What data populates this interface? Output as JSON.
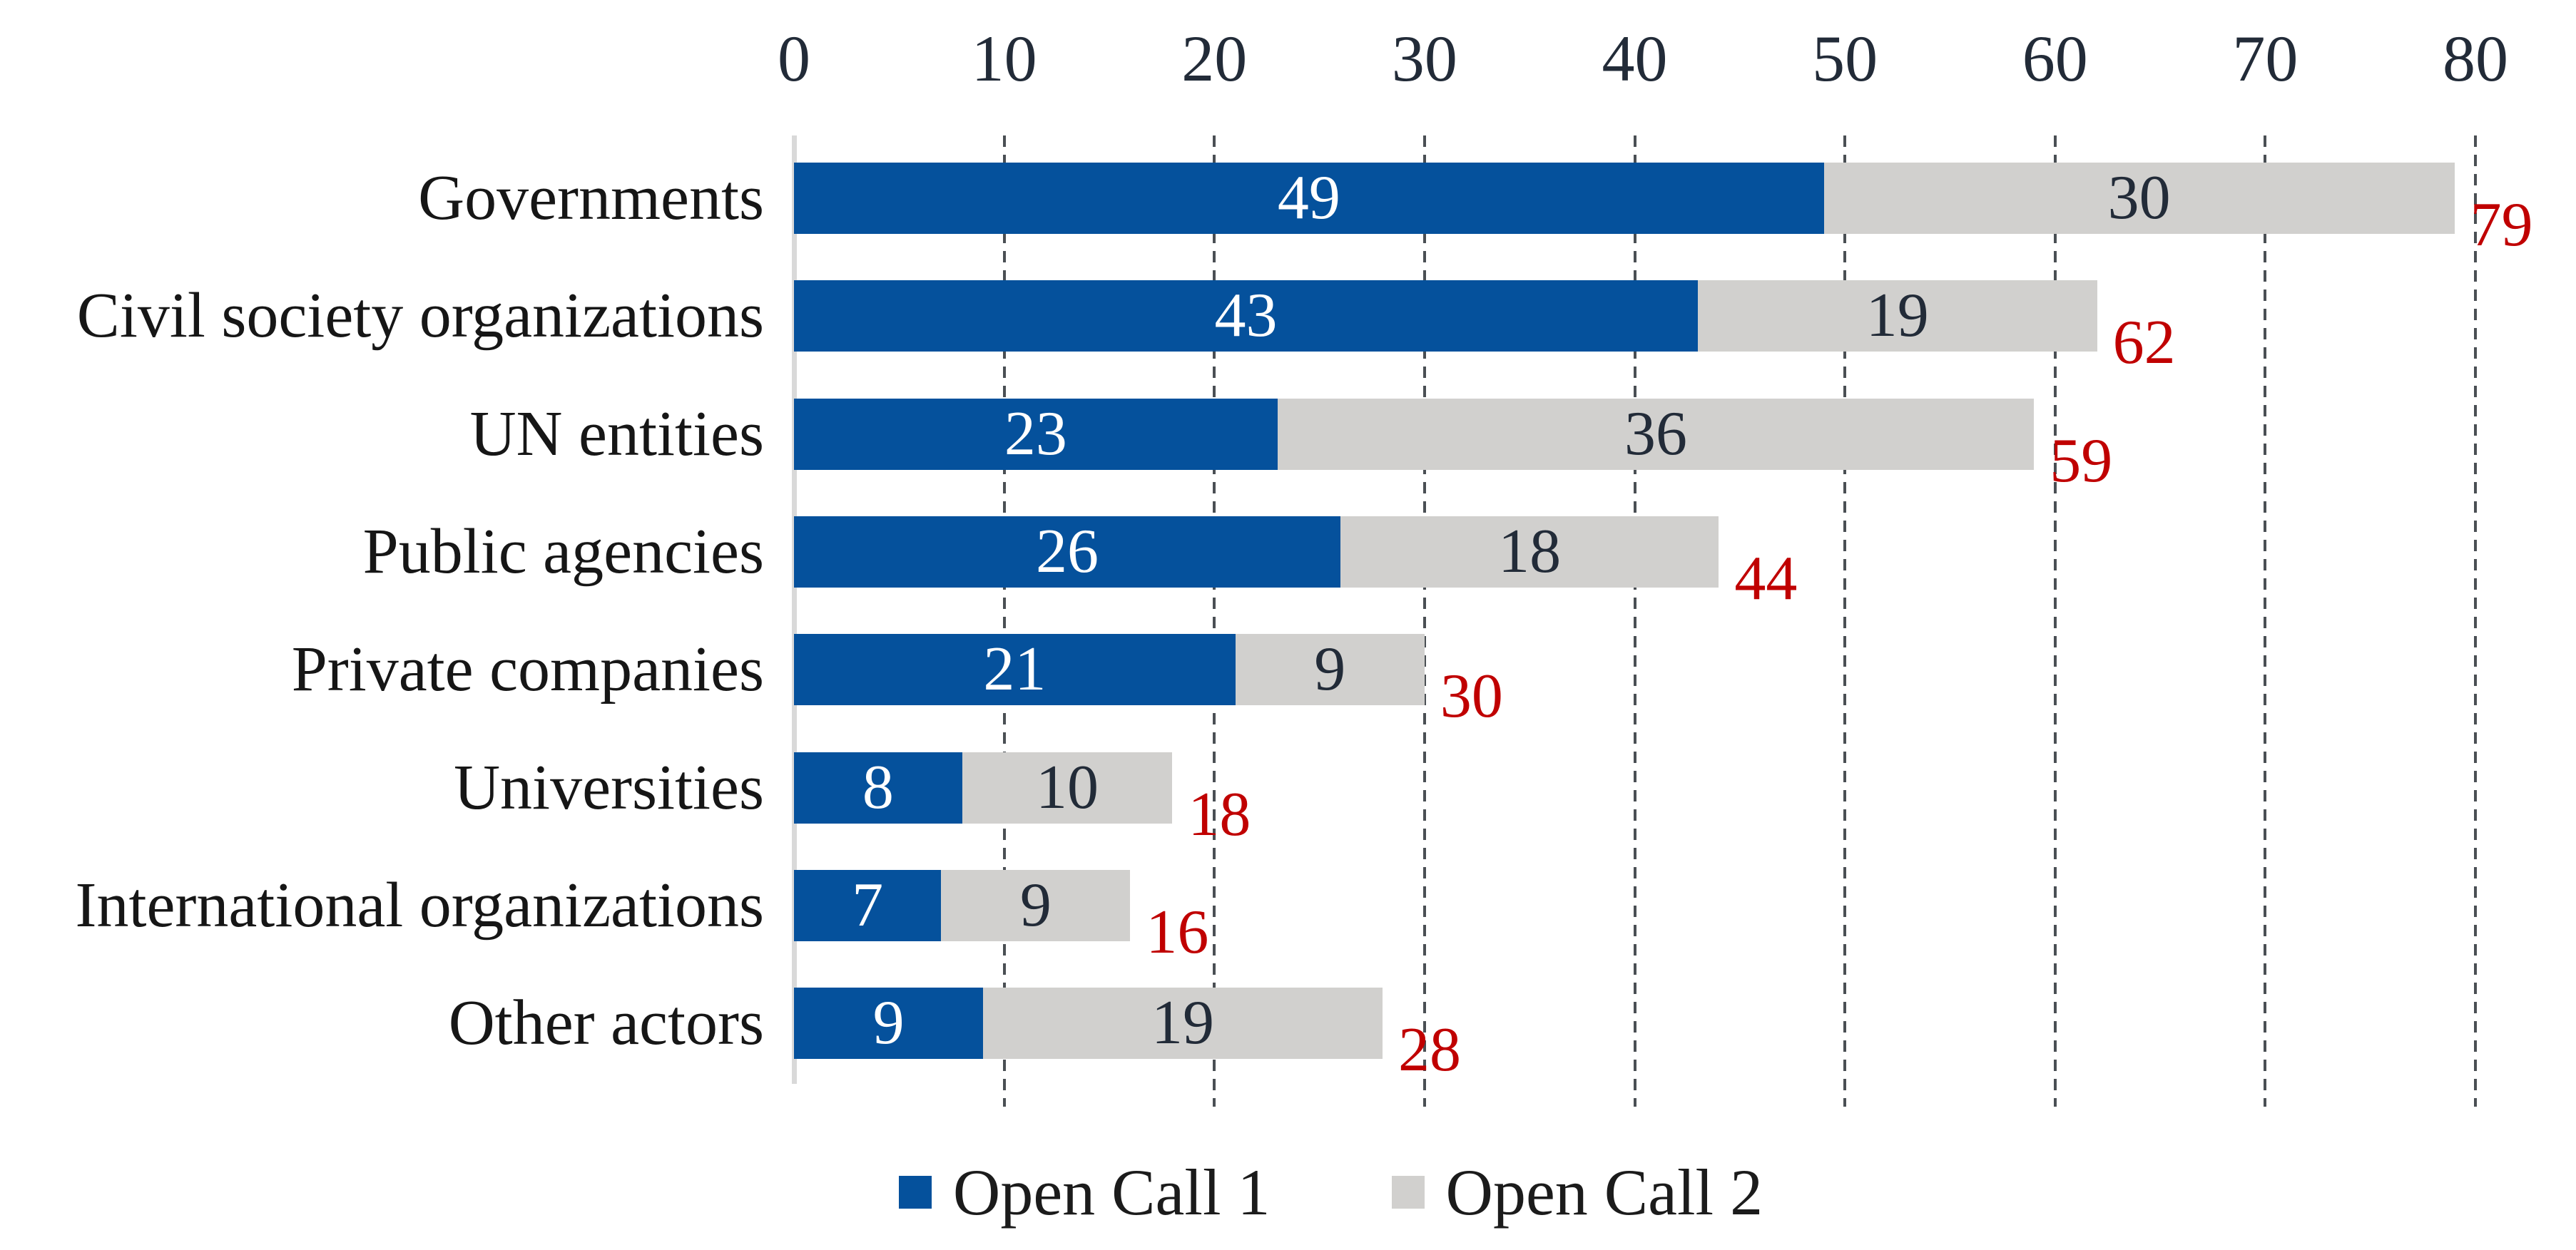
{
  "chart_data": {
    "type": "bar",
    "orientation": "horizontal",
    "stacked": true,
    "title": "",
    "xlabel": "",
    "ylabel": "",
    "categories": [
      "Governments",
      "Civil society organizations",
      "UN entities",
      "Public agencies",
      "Private companies",
      "Universities",
      "International organizations",
      "Other actors"
    ],
    "series": [
      {
        "name": "Open Call 1",
        "color": "#05519c",
        "label_color": "#ffffff",
        "values": [
          49,
          43,
          23,
          26,
          21,
          8,
          7,
          9
        ]
      },
      {
        "name": "Open Call 2",
        "color": "#d1d0ce",
        "label_color": "#222b38",
        "values": [
          30,
          19,
          36,
          18,
          9,
          10,
          9,
          19
        ]
      }
    ],
    "totals": {
      "values": [
        79,
        62,
        59,
        44,
        30,
        18,
        16,
        28
      ],
      "color": "#c00000"
    },
    "x_axis": {
      "position": "top",
      "min": 0,
      "max": 80,
      "tick_interval": 10,
      "ticks": [
        0,
        10,
        20,
        30,
        40,
        50,
        60,
        70,
        80
      ],
      "tick_color": "#222b38"
    },
    "grid": {
      "style": "dashed-vertical",
      "color": "#4a4f54",
      "zero_axis_color": "#d9d9d9"
    },
    "legend": {
      "position": "bottom",
      "entries": [
        {
          "label": "Open Call 1",
          "color": "#05519c"
        },
        {
          "label": "Open Call 2",
          "color": "#d1d0ce"
        }
      ]
    }
  }
}
